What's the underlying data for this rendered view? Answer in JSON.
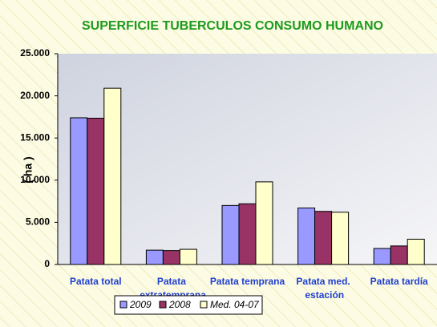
{
  "chart_data": {
    "type": "bar",
    "title": "SUPERFICIE TUBERCULOS CONSUMO HUMANO",
    "y_label": "( ha )",
    "categories": [
      "Patata total",
      "Patata extratemprana",
      "Patata temprana",
      "Patata med. estación",
      "Patata tardía"
    ],
    "series": [
      {
        "name": "2009",
        "color": "#9999ff",
        "values": [
          17400,
          1700,
          7000,
          6700,
          1900
        ]
      },
      {
        "name": "2008",
        "color": "#993366",
        "values": [
          17350,
          1650,
          7200,
          6300,
          2200
        ]
      },
      {
        "name": "Med. 04-07",
        "color": "#ffffcc",
        "values": [
          20900,
          1800,
          9800,
          6200,
          3000
        ]
      }
    ],
    "ylim": [
      0,
      25000
    ],
    "yticks": [
      0,
      {
        "value": 5000,
        "label": "5.000"
      },
      {
        "value": 10000,
        "label": "10.000"
      },
      {
        "value": 15000,
        "label": "15.000"
      },
      {
        "value": 20000,
        "label": "20.000"
      },
      {
        "value": 25000,
        "label": "25.000"
      }
    ],
    "legend": "bottom"
  }
}
